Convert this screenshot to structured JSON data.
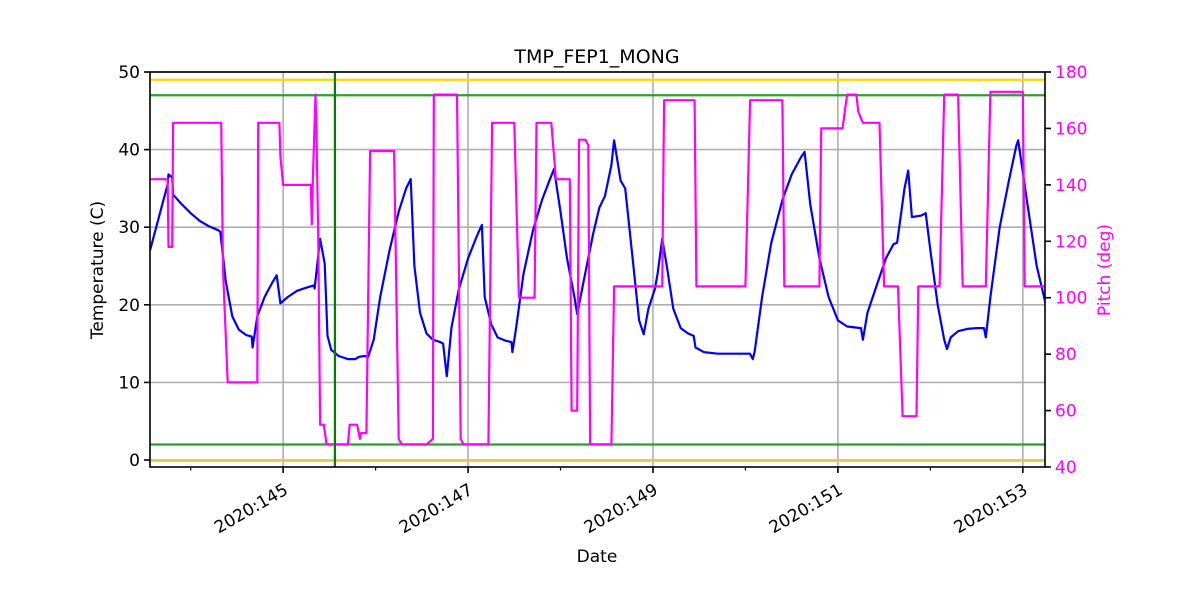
{
  "chart_data": {
    "type": "line",
    "title": "TMP_FEP1_MONG",
    "xlabel": "Date",
    "ylabel": "Temperature (C)",
    "y2label": "Pitch (deg)",
    "xlim": [
      143.56,
      153.24
    ],
    "ylim": [
      -0.9,
      50
    ],
    "y2lim": [
      40,
      180
    ],
    "grid": true,
    "x_ticks": [
      {
        "value": 145,
        "label": "2020:145"
      },
      {
        "value": 147,
        "label": "2020:147"
      },
      {
        "value": 149,
        "label": "2020:149"
      },
      {
        "value": 151,
        "label": "2020:151"
      },
      {
        "value": 153,
        "label": "2020:153"
      }
    ],
    "x_minor_ticks": [
      144,
      146,
      148,
      150,
      152
    ],
    "y_ticks": [
      0,
      10,
      20,
      30,
      40,
      50
    ],
    "y2_ticks": [
      40,
      60,
      80,
      100,
      120,
      140,
      160,
      180
    ],
    "limit_lines": [
      {
        "name": "yellow-upper-limit",
        "axis": "y",
        "value": 49,
        "color": "#ffd700"
      },
      {
        "name": "green-upper-limit",
        "axis": "y",
        "value": 47,
        "color": "#2ca02c"
      },
      {
        "name": "green-lower-limit",
        "axis": "y",
        "value": 2,
        "color": "#2ca02c"
      },
      {
        "name": "yellow-lower-limit",
        "axis": "y",
        "value": -0.1,
        "color": "#e6c84a"
      }
    ],
    "vertical_lines": [
      {
        "name": "current-time-marker",
        "x": 145.56,
        "color": "#008000"
      }
    ],
    "series": [
      {
        "name": "TMP_FEP1_MONG",
        "axis": "left",
        "color": "#0000ff",
        "points": [
          [
            143.56,
            27.0
          ],
          [
            143.75,
            35.5
          ],
          [
            143.76,
            36.8
          ],
          [
            143.8,
            36.4
          ],
          [
            143.81,
            34.2
          ],
          [
            143.9,
            33.0
          ],
          [
            144.0,
            31.8
          ],
          [
            144.1,
            30.8
          ],
          [
            144.2,
            30.1
          ],
          [
            144.3,
            29.6
          ],
          [
            144.32,
            29.4
          ],
          [
            144.38,
            23.0
          ],
          [
            144.45,
            18.5
          ],
          [
            144.52,
            16.8
          ],
          [
            144.6,
            16.1
          ],
          [
            144.66,
            15.9
          ],
          [
            144.67,
            14.5
          ],
          [
            144.72,
            18.5
          ],
          [
            144.8,
            21.0
          ],
          [
            144.88,
            22.8
          ],
          [
            144.93,
            23.8
          ],
          [
            144.97,
            20.2
          ],
          [
            145.05,
            21.0
          ],
          [
            145.15,
            21.8
          ],
          [
            145.25,
            22.2
          ],
          [
            145.33,
            22.5
          ],
          [
            145.34,
            22.1
          ],
          [
            145.4,
            28.5
          ],
          [
            145.45,
            25.3
          ],
          [
            145.48,
            16.0
          ],
          [
            145.52,
            14.2
          ],
          [
            145.6,
            13.4
          ],
          [
            145.7,
            13.0
          ],
          [
            145.78,
            13.0
          ],
          [
            145.82,
            13.3
          ],
          [
            145.88,
            13.4
          ],
          [
            145.92,
            13.3
          ],
          [
            145.98,
            15.5
          ],
          [
            146.05,
            21.0
          ],
          [
            146.15,
            27.0
          ],
          [
            146.25,
            32.0
          ],
          [
            146.33,
            35.0
          ],
          [
            146.38,
            36.2
          ],
          [
            146.42,
            25.0
          ],
          [
            146.48,
            19.0
          ],
          [
            146.55,
            16.3
          ],
          [
            146.62,
            15.5
          ],
          [
            146.7,
            15.2
          ],
          [
            146.73,
            15.0
          ],
          [
            146.77,
            10.8
          ],
          [
            146.82,
            17.0
          ],
          [
            146.9,
            22.0
          ],
          [
            147.0,
            26.0
          ],
          [
            147.1,
            29.0
          ],
          [
            147.15,
            30.3
          ],
          [
            147.18,
            21.0
          ],
          [
            147.25,
            17.5
          ],
          [
            147.32,
            15.8
          ],
          [
            147.4,
            15.4
          ],
          [
            147.47,
            15.2
          ],
          [
            147.48,
            13.9
          ],
          [
            147.52,
            17.0
          ],
          [
            147.6,
            24.0
          ],
          [
            147.7,
            29.5
          ],
          [
            147.8,
            33.5
          ],
          [
            147.88,
            36.0
          ],
          [
            147.93,
            37.5
          ],
          [
            148.0,
            32.0
          ],
          [
            148.07,
            26.0
          ],
          [
            148.15,
            21.0
          ],
          [
            148.18,
            18.8
          ],
          [
            148.25,
            23.0
          ],
          [
            148.35,
            29.0
          ],
          [
            148.42,
            32.5
          ],
          [
            148.48,
            34.0
          ],
          [
            148.55,
            38.0
          ],
          [
            148.58,
            41.2
          ],
          [
            148.65,
            36.0
          ],
          [
            148.7,
            35.0
          ],
          [
            148.78,
            26.0
          ],
          [
            148.85,
            18.0
          ],
          [
            148.9,
            16.2
          ],
          [
            148.95,
            19.5
          ],
          [
            149.02,
            22.0
          ],
          [
            149.05,
            24.0
          ],
          [
            149.1,
            28.5
          ],
          [
            149.15,
            25.0
          ],
          [
            149.22,
            19.5
          ],
          [
            149.3,
            17.0
          ],
          [
            149.38,
            16.3
          ],
          [
            149.44,
            16.0
          ],
          [
            149.46,
            14.5
          ],
          [
            149.55,
            13.9
          ],
          [
            149.7,
            13.7
          ],
          [
            149.9,
            13.7
          ],
          [
            150.0,
            13.7
          ],
          [
            150.05,
            13.7
          ],
          [
            150.08,
            13.0
          ],
          [
            150.1,
            14.0
          ],
          [
            150.18,
            21.0
          ],
          [
            150.28,
            28.0
          ],
          [
            150.4,
            33.5
          ],
          [
            150.5,
            36.8
          ],
          [
            150.6,
            39.0
          ],
          [
            150.64,
            39.7
          ],
          [
            150.7,
            33.0
          ],
          [
            150.8,
            26.0
          ],
          [
            150.9,
            21.0
          ],
          [
            151.0,
            18.0
          ],
          [
            151.1,
            17.2
          ],
          [
            151.25,
            17.0
          ],
          [
            151.27,
            15.5
          ],
          [
            151.32,
            19.0
          ],
          [
            151.42,
            22.5
          ],
          [
            151.52,
            26.0
          ],
          [
            151.6,
            27.8
          ],
          [
            151.64,
            28.0
          ],
          [
            151.72,
            35.0
          ],
          [
            151.76,
            37.3
          ],
          [
            151.8,
            31.3
          ],
          [
            151.9,
            31.5
          ],
          [
            151.95,
            31.8
          ],
          [
            152.0,
            27.0
          ],
          [
            152.08,
            20.0
          ],
          [
            152.15,
            15.5
          ],
          [
            152.18,
            14.3
          ],
          [
            152.22,
            15.8
          ],
          [
            152.3,
            16.6
          ],
          [
            152.4,
            16.9
          ],
          [
            152.5,
            17.0
          ],
          [
            152.58,
            17.0
          ],
          [
            152.6,
            15.8
          ],
          [
            152.65,
            21.0
          ],
          [
            152.75,
            30.0
          ],
          [
            152.85,
            36.0
          ],
          [
            152.93,
            40.5
          ],
          [
            152.95,
            41.2
          ],
          [
            153.05,
            33.0
          ],
          [
            153.15,
            25.0
          ],
          [
            153.25,
            20.0
          ],
          [
            153.35,
            17.0
          ],
          [
            153.45,
            16.3
          ],
          [
            153.58,
            16.0
          ],
          [
            153.6,
            15.8
          ]
        ]
      },
      {
        "name": "Pitch",
        "axis": "right",
        "color": "#ff00ff",
        "points": [
          [
            143.56,
            142
          ],
          [
            143.75,
            142
          ],
          [
            143.76,
            118
          ],
          [
            143.8,
            118
          ],
          [
            143.81,
            162
          ],
          [
            143.95,
            162
          ],
          [
            144.1,
            162
          ],
          [
            144.33,
            162
          ],
          [
            144.35,
            110
          ],
          [
            144.4,
            70
          ],
          [
            144.72,
            70
          ],
          [
            144.73,
            162
          ],
          [
            144.9,
            162
          ],
          [
            144.96,
            162
          ],
          [
            144.97,
            150
          ],
          [
            145.0,
            140
          ],
          [
            145.3,
            140
          ],
          [
            145.31,
            126
          ],
          [
            145.32,
            140
          ],
          [
            145.35,
            172
          ],
          [
            145.36,
            160
          ],
          [
            145.38,
            120
          ],
          [
            145.4,
            55
          ],
          [
            145.44,
            55
          ],
          [
            145.47,
            48
          ],
          [
            145.7,
            48
          ],
          [
            145.72,
            55
          ],
          [
            145.8,
            55
          ],
          [
            145.83,
            50
          ],
          [
            145.84,
            52
          ],
          [
            145.9,
            52
          ],
          [
            145.94,
            152
          ],
          [
            146.15,
            152
          ],
          [
            146.2,
            152
          ],
          [
            146.25,
            50
          ],
          [
            146.28,
            48
          ],
          [
            146.55,
            48
          ],
          [
            146.62,
            50
          ],
          [
            146.63,
            172
          ],
          [
            146.88,
            172
          ],
          [
            146.92,
            50
          ],
          [
            146.95,
            48
          ],
          [
            147.22,
            48
          ],
          [
            147.26,
            162
          ],
          [
            147.5,
            162
          ],
          [
            147.55,
            100
          ],
          [
            147.72,
            100
          ],
          [
            147.74,
            162
          ],
          [
            147.9,
            162
          ],
          [
            147.95,
            142
          ],
          [
            148.1,
            142
          ],
          [
            148.12,
            60
          ],
          [
            148.18,
            60
          ],
          [
            148.2,
            156
          ],
          [
            148.27,
            156
          ],
          [
            148.3,
            154
          ],
          [
            148.32,
            48
          ],
          [
            148.55,
            48
          ],
          [
            148.58,
            104
          ],
          [
            149.1,
            104
          ],
          [
            149.12,
            170
          ],
          [
            149.45,
            170
          ],
          [
            149.47,
            104
          ],
          [
            149.98,
            104
          ],
          [
            150.0,
            104
          ],
          [
            150.02,
            130
          ],
          [
            150.05,
            170
          ],
          [
            150.2,
            170
          ],
          [
            150.4,
            170
          ],
          [
            150.42,
            104
          ],
          [
            150.8,
            104
          ],
          [
            150.82,
            160
          ],
          [
            151.05,
            160
          ],
          [
            151.1,
            172
          ],
          [
            151.2,
            172
          ],
          [
            151.22,
            166
          ],
          [
            151.27,
            162
          ],
          [
            151.45,
            162
          ],
          [
            151.5,
            104
          ],
          [
            151.55,
            104
          ],
          [
            151.65,
            104
          ],
          [
            151.7,
            58
          ],
          [
            151.85,
            58
          ],
          [
            151.87,
            104
          ],
          [
            152.1,
            104
          ],
          [
            152.15,
            172
          ],
          [
            152.3,
            172
          ],
          [
            152.35,
            104
          ],
          [
            152.6,
            104
          ],
          [
            152.65,
            173
          ],
          [
            152.9,
            173
          ],
          [
            153.0,
            173
          ],
          [
            153.02,
            104
          ],
          [
            153.3,
            104
          ],
          [
            153.32,
            173
          ],
          [
            153.5,
            173
          ],
          [
            153.55,
            152
          ],
          [
            153.6,
            152
          ]
        ]
      }
    ]
  }
}
